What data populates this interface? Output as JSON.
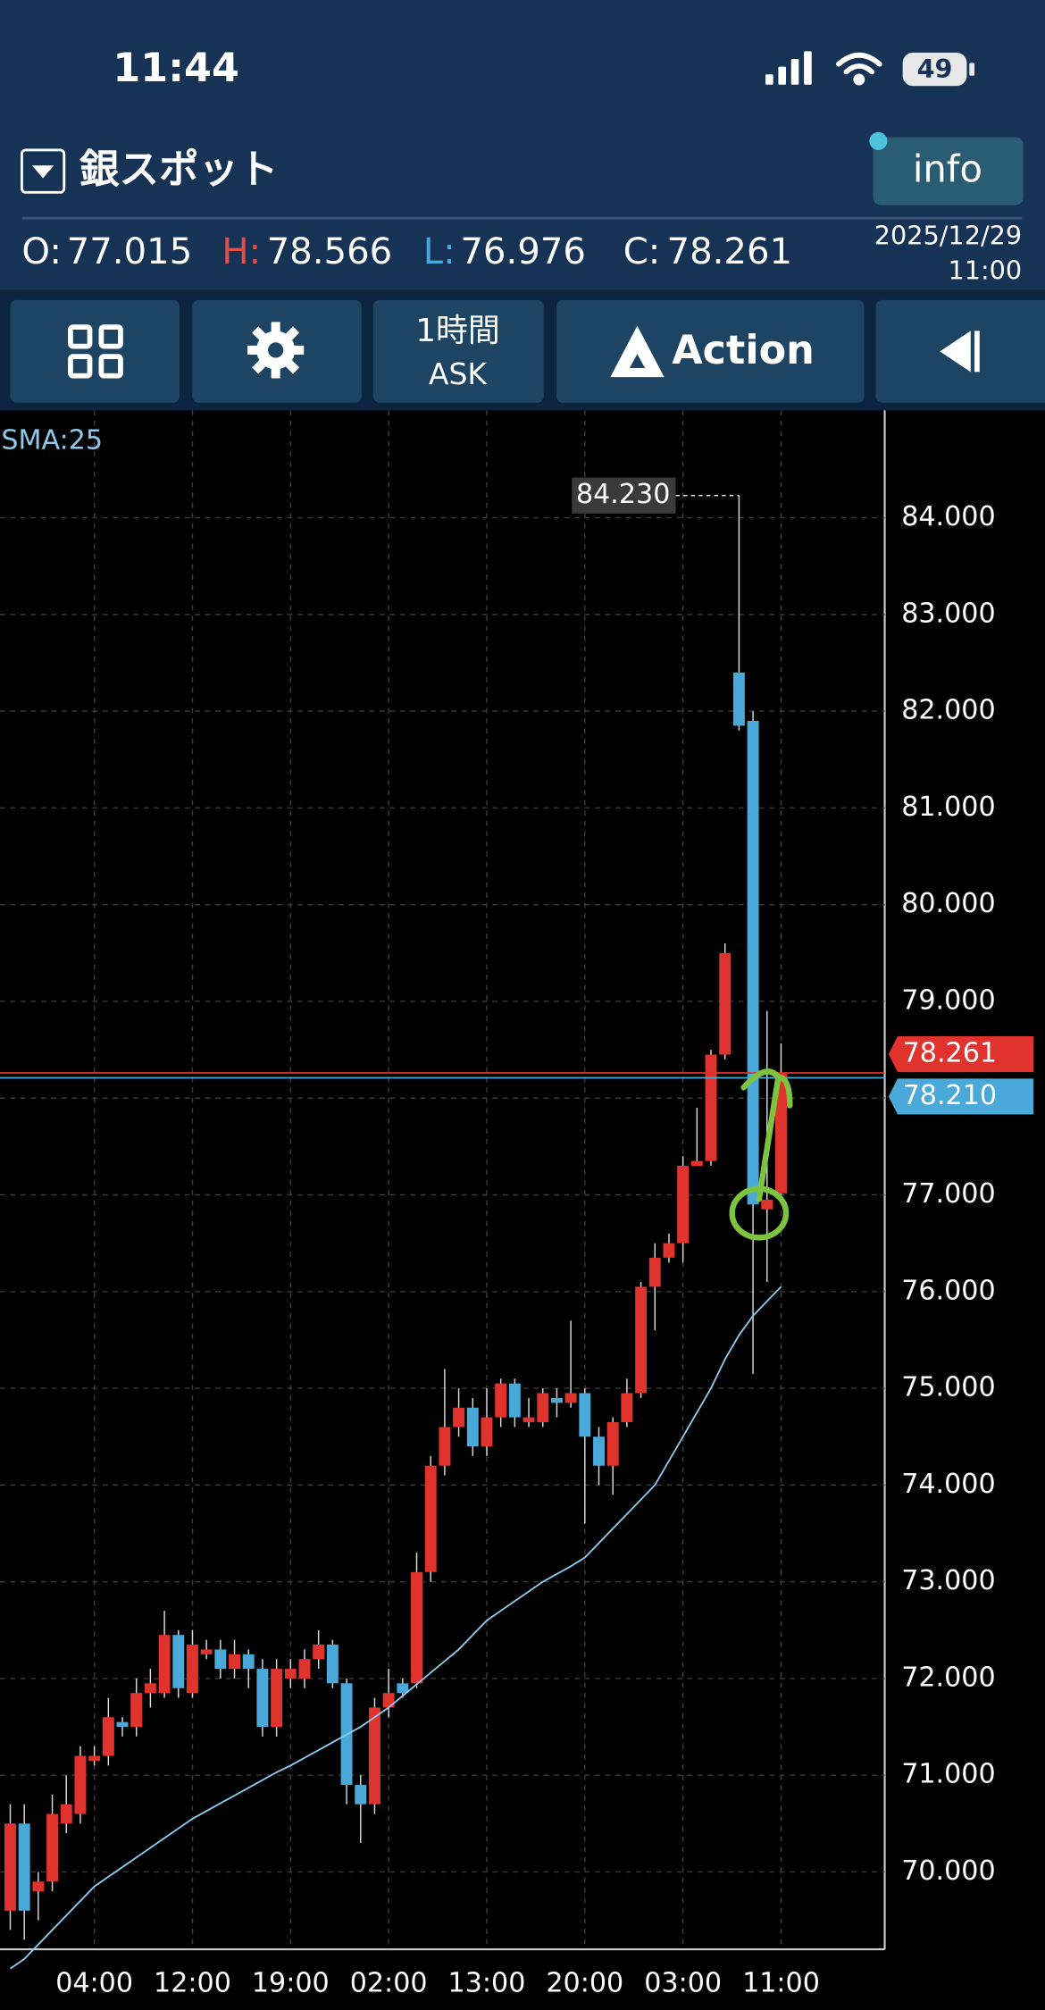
{
  "status_bar": {
    "time": "11:44",
    "battery": "49"
  },
  "header": {
    "symbol": "銀スポット",
    "info_button": "info",
    "ohlc": [
      {
        "label": "O:",
        "value": "77.015"
      },
      {
        "label": "H:",
        "value": "78.566"
      },
      {
        "label": "L:",
        "value": "76.976"
      },
      {
        "label": "C:",
        "value": "78.261"
      }
    ],
    "date": "2025/12/29",
    "time": "11:00"
  },
  "toolbar": {
    "timeframe": "1時間",
    "price_type": "ASK",
    "action": "Action"
  },
  "chart_data": {
    "type": "candlestick",
    "categories": [
      null,
      null,
      null,
      null,
      null,
      null,
      "04:00",
      null,
      null,
      null,
      null,
      null,
      null,
      "12:00",
      null,
      null,
      null,
      null,
      null,
      null,
      "19:00",
      null,
      null,
      null,
      null,
      null,
      null,
      "02:00",
      null,
      null,
      null,
      null,
      null,
      null,
      "13:00",
      null,
      null,
      null,
      null,
      null,
      null,
      "20:00",
      null,
      null,
      null,
      null,
      null,
      null,
      "03:00",
      null,
      null,
      null,
      null,
      null,
      null,
      "11:00"
    ],
    "open": [
      69.6,
      70.5,
      69.8,
      69.9,
      70.5,
      70.6,
      71.15,
      71.2,
      71.55,
      71.5,
      71.85,
      71.85,
      72.45,
      71.85,
      72.25,
      72.3,
      72.1,
      72.25,
      72.1,
      71.5,
      72.0,
      72.0,
      72.2,
      72.35,
      71.95,
      70.9,
      70.7,
      71.7,
      71.95,
      71.95,
      73.1,
      74.2,
      74.6,
      74.8,
      74.4,
      74.7,
      75.05,
      74.65,
      74.65,
      74.9,
      74.85,
      74.95,
      74.5,
      74.2,
      74.65,
      74.95,
      76.05,
      76.35,
      76.5,
      77.3,
      77.35,
      78.45,
      82.4,
      81.9,
      76.85,
      77.015
    ],
    "high": [
      70.7,
      70.7,
      70.0,
      70.8,
      71.0,
      71.3,
      71.3,
      71.8,
      71.6,
      72.0,
      72.1,
      72.7,
      72.5,
      72.5,
      72.4,
      72.4,
      72.4,
      72.3,
      72.2,
      72.2,
      72.2,
      72.3,
      72.5,
      72.4,
      72.0,
      71.0,
      71.8,
      72.1,
      72.0,
      73.3,
      74.3,
      75.2,
      75.0,
      74.9,
      75.0,
      75.1,
      75.1,
      74.9,
      75.0,
      75.0,
      75.7,
      75.0,
      74.6,
      74.7,
      75.1,
      76.1,
      76.5,
      76.6,
      77.4,
      77.9,
      78.5,
      79.6,
      84.23,
      82.0,
      78.9,
      78.566
    ],
    "low": [
      69.4,
      69.3,
      69.5,
      69.8,
      70.4,
      70.5,
      71.1,
      71.1,
      71.4,
      71.4,
      71.7,
      71.8,
      71.8,
      71.8,
      72.2,
      72.0,
      72.0,
      71.9,
      71.4,
      71.4,
      71.9,
      71.9,
      72.1,
      71.9,
      70.7,
      70.3,
      70.6,
      71.6,
      71.8,
      71.9,
      73.0,
      74.1,
      74.5,
      74.3,
      74.3,
      74.6,
      74.6,
      74.6,
      74.6,
      74.7,
      74.8,
      73.6,
      74.0,
      73.9,
      74.6,
      74.9,
      75.6,
      76.3,
      76.3,
      77.3,
      77.3,
      78.4,
      81.8,
      75.15,
      76.1,
      76.976
    ],
    "close": [
      70.5,
      69.6,
      69.9,
      70.6,
      70.7,
      71.2,
      71.2,
      71.6,
      71.5,
      71.85,
      71.95,
      72.45,
      71.9,
      72.35,
      72.3,
      72.1,
      72.25,
      72.1,
      71.5,
      72.1,
      72.1,
      72.2,
      72.35,
      71.95,
      70.9,
      70.7,
      71.7,
      71.85,
      71.85,
      73.1,
      74.2,
      74.6,
      74.8,
      74.4,
      74.7,
      75.05,
      74.7,
      74.7,
      74.95,
      74.85,
      74.95,
      74.5,
      74.2,
      74.65,
      74.95,
      76.05,
      76.35,
      76.5,
      77.3,
      77.35,
      78.45,
      79.5,
      81.85,
      76.9,
      76.95,
      78.261
    ],
    "up_color": "#e0332d",
    "down_color": "#4aa9d9",
    "sma": {
      "name": "SMA:25",
      "color": "#8ec8ea",
      "values": [
        69.0,
        69.1,
        69.25,
        69.4,
        69.55,
        69.7,
        69.85,
        69.95,
        70.05,
        70.15,
        70.25,
        70.35,
        70.45,
        70.55,
        70.63,
        70.71,
        70.79,
        70.87,
        70.95,
        71.03,
        71.1,
        71.18,
        71.26,
        71.34,
        71.42,
        71.5,
        71.6,
        71.7,
        71.82,
        71.94,
        72.06,
        72.18,
        72.3,
        72.45,
        72.6,
        72.7,
        72.8,
        72.9,
        73.0,
        73.08,
        73.16,
        73.25,
        73.4,
        73.55,
        73.7,
        73.85,
        74.0,
        74.25,
        74.5,
        74.75,
        75.0,
        75.3,
        75.55,
        75.75,
        75.9,
        76.05
      ]
    },
    "price_lines": [
      {
        "value": 78.261,
        "label": "78.261",
        "color": "#e0332d"
      },
      {
        "value": 78.21,
        "label": "78.210",
        "color": "#4aa9d9"
      }
    ],
    "high_marker": {
      "value": 84.23,
      "label": "84.230"
    },
    "ylim": [
      69.2,
      85.11
    ],
    "yticks": [
      {
        "value": 70,
        "label": "70.000"
      },
      {
        "value": 71,
        "label": "71.000"
      },
      {
        "value": 72,
        "label": "72.000"
      },
      {
        "value": 73,
        "label": "73.000"
      },
      {
        "value": 74,
        "label": "74.000"
      },
      {
        "value": 75,
        "label": "75.000"
      },
      {
        "value": 76,
        "label": "76.000"
      },
      {
        "value": 77,
        "label": "77.000"
      },
      {
        "value": 78,
        "label": "78.000"
      },
      {
        "value": 79,
        "label": "79.000"
      },
      {
        "value": 80,
        "label": "80.000"
      },
      {
        "value": 81,
        "label": "81.000"
      },
      {
        "value": 82,
        "label": "82.000"
      },
      {
        "value": 83,
        "label": "83.000"
      },
      {
        "value": 84,
        "label": "84.000"
      }
    ],
    "grid": true
  }
}
